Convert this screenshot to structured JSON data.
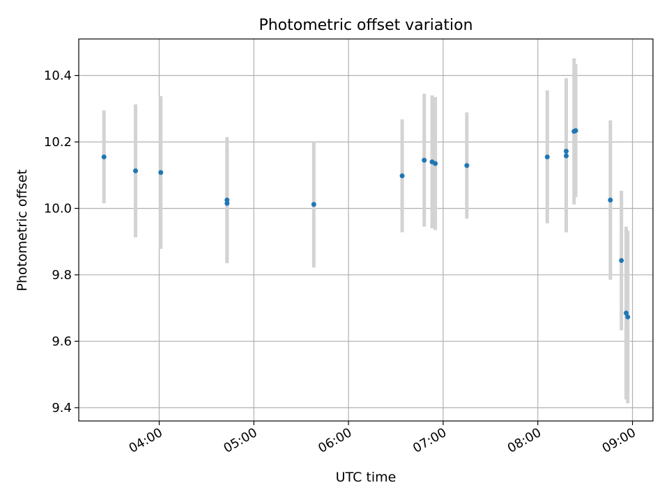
{
  "chart_data": {
    "type": "scatter",
    "title": "Photometric offset variation",
    "xlabel": "UTC time",
    "ylabel": "Photometric offset",
    "x_ticks": [
      "04:00",
      "05:00",
      "06:00",
      "07:00",
      "08:00",
      "09:00"
    ],
    "y_ticks": [
      "9.4",
      "9.6",
      "9.8",
      "10.0",
      "10.2",
      "10.4"
    ],
    "xlim": [
      "03:09",
      "09:13"
    ],
    "ylim": [
      9.36,
      10.51
    ],
    "grid": true,
    "colors": {
      "points": "#1f77b4",
      "error_bars": "#d3d3d3",
      "grid": "#b0b0b0"
    },
    "points": [
      {
        "x": "03:25",
        "y": 10.155,
        "err": 0.14
      },
      {
        "x": "03:45",
        "y": 10.113,
        "err": 0.2
      },
      {
        "x": "04:01",
        "y": 10.108,
        "err": 0.23
      },
      {
        "x": "04:43",
        "y": 10.015,
        "err": 0.17
      },
      {
        "x": "04:43",
        "y": 10.025,
        "err": 0.19
      },
      {
        "x": "05:38",
        "y": 10.012,
        "err": 0.19
      },
      {
        "x": "06:34",
        "y": 10.098,
        "err": 0.17
      },
      {
        "x": "06:48",
        "y": 10.145,
        "err": 0.2
      },
      {
        "x": "06:53",
        "y": 10.14,
        "err": 0.2
      },
      {
        "x": "06:55",
        "y": 10.135,
        "err": 0.2
      },
      {
        "x": "07:15",
        "y": 10.129,
        "err": 0.16
      },
      {
        "x": "08:06",
        "y": 10.155,
        "err": 0.2
      },
      {
        "x": "08:18",
        "y": 10.158,
        "err": 0.23
      },
      {
        "x": "08:18",
        "y": 10.172,
        "err": 0.22
      },
      {
        "x": "08:23",
        "y": 10.232,
        "err": 0.22
      },
      {
        "x": "08:24",
        "y": 10.234,
        "err": 0.2
      },
      {
        "x": "08:46",
        "y": 10.025,
        "err": 0.24
      },
      {
        "x": "08:53",
        "y": 9.843,
        "err": 0.21
      },
      {
        "x": "08:56",
        "y": 9.685,
        "err": 0.26
      },
      {
        "x": "08:57",
        "y": 9.673,
        "err": 0.26
      }
    ]
  }
}
